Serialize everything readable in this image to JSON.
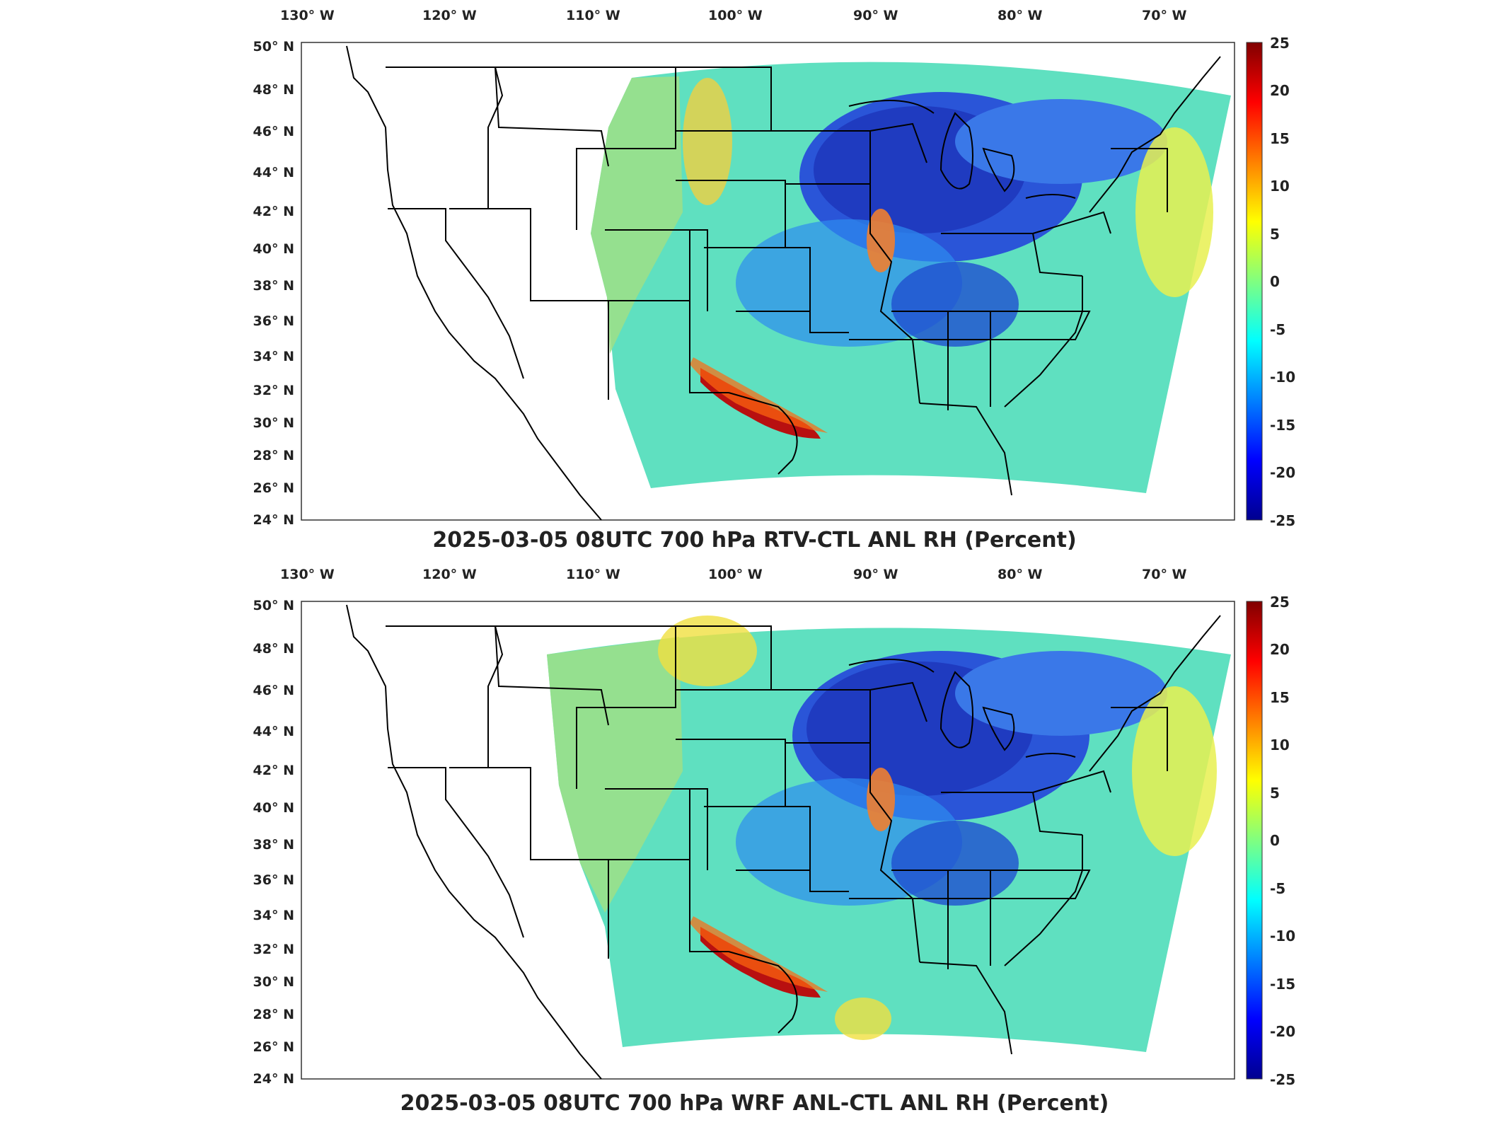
{
  "panels": [
    {
      "id": "top",
      "title": "2025-03-05 08UTC 700 hPa RTV-CTL ANL RH (Percent)"
    },
    {
      "id": "bottom",
      "title": "2025-03-05 08UTC 700 hPa WRF ANL-CTL ANL RH (Percent)"
    }
  ],
  "axes": {
    "lon_ticks": [
      "130° W",
      "120° W",
      "110° W",
      "100° W",
      "90° W",
      "80° W",
      "70° W"
    ],
    "lat_ticks": [
      "50° N",
      "48° N",
      "46° N",
      "44° N",
      "42° N",
      "40° N",
      "38° N",
      "36° N",
      "34° N",
      "32° N",
      "30° N",
      "28° N",
      "26° N",
      "24° N"
    ]
  },
  "colorbar": {
    "labels": [
      "25",
      "20",
      "15",
      "10",
      "5",
      "0",
      "-5",
      "-10",
      "-15",
      "-20",
      "-25"
    ],
    "range": [
      -25,
      25
    ],
    "colormap": "jet",
    "colors": [
      "#00008f",
      "#0000ff",
      "#0080ff",
      "#00ffff",
      "#80ff80",
      "#ffff00",
      "#ff8000",
      "#ff0000",
      "#800000"
    ]
  },
  "map": {
    "projection": "lambert-conformal",
    "domain": "CONUS",
    "features": [
      "coastlines",
      "state-boundaries",
      "country-borders"
    ]
  }
}
